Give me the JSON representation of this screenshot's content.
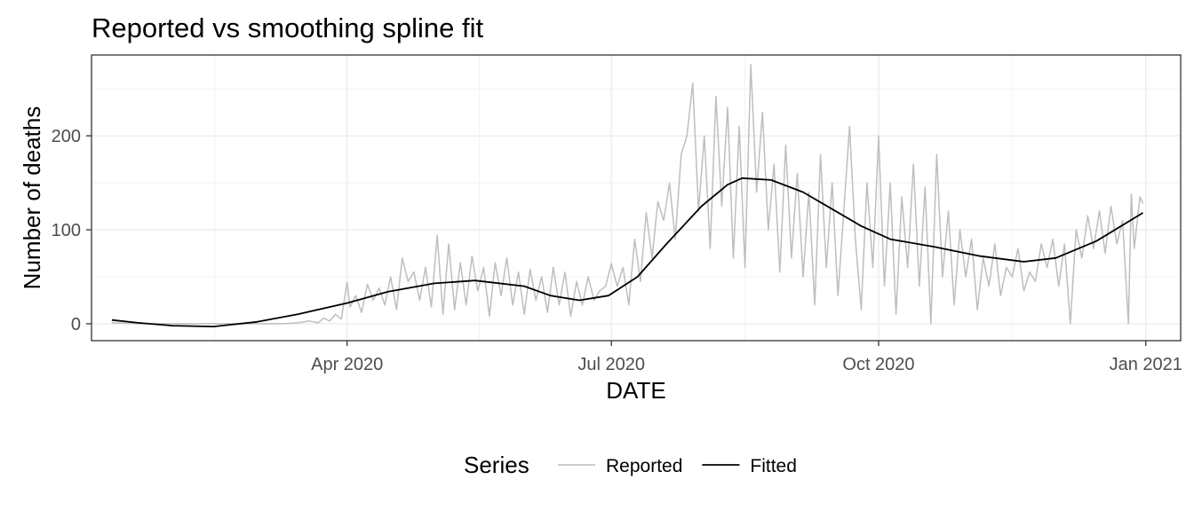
{
  "chart_data": {
    "type": "line",
    "title": "Reported vs smoothing spline fit",
    "xlabel": "DATE",
    "ylabel": "Number of deaths",
    "x_ticks": [
      {
        "date": "2020-04-01",
        "label": "Apr 2020"
      },
      {
        "date": "2020-07-01",
        "label": "Jul 2020"
      },
      {
        "date": "2020-10-01",
        "label": "Oct 2020"
      },
      {
        "date": "2021-01-01",
        "label": "Jan 2021"
      }
    ],
    "y_ticks": [
      0,
      100,
      200
    ],
    "xlim": [
      "2020-01-04",
      "2021-01-13"
    ],
    "ylim": [
      -18,
      286
    ],
    "grid": true,
    "legend": {
      "title": "Series",
      "position": "bottom"
    },
    "series": [
      {
        "name": "Reported",
        "color": "#bebebe",
        "data": [
          [
            "2020-01-11",
            1
          ],
          [
            "2020-01-20",
            0
          ],
          [
            "2020-02-01",
            0
          ],
          [
            "2020-02-15",
            0
          ],
          [
            "2020-03-01",
            0
          ],
          [
            "2020-03-10",
            0
          ],
          [
            "2020-03-15",
            1
          ],
          [
            "2020-03-19",
            3
          ],
          [
            "2020-03-22",
            1
          ],
          [
            "2020-03-24",
            6
          ],
          [
            "2020-03-26",
            3
          ],
          [
            "2020-03-28",
            10
          ],
          [
            "2020-03-30",
            5
          ],
          [
            "2020-04-01",
            44
          ],
          [
            "2020-04-02",
            18
          ],
          [
            "2020-04-04",
            30
          ],
          [
            "2020-04-06",
            12
          ],
          [
            "2020-04-08",
            42
          ],
          [
            "2020-04-10",
            25
          ],
          [
            "2020-04-12",
            38
          ],
          [
            "2020-04-14",
            20
          ],
          [
            "2020-04-16",
            50
          ],
          [
            "2020-04-18",
            15
          ],
          [
            "2020-04-20",
            70
          ],
          [
            "2020-04-22",
            45
          ],
          [
            "2020-04-24",
            55
          ],
          [
            "2020-04-26",
            25
          ],
          [
            "2020-04-28",
            60
          ],
          [
            "2020-04-30",
            18
          ],
          [
            "2020-05-02",
            94
          ],
          [
            "2020-05-04",
            10
          ],
          [
            "2020-05-06",
            85
          ],
          [
            "2020-05-08",
            15
          ],
          [
            "2020-05-10",
            65
          ],
          [
            "2020-05-12",
            20
          ],
          [
            "2020-05-14",
            72
          ],
          [
            "2020-05-16",
            35
          ],
          [
            "2020-05-18",
            60
          ],
          [
            "2020-05-20",
            8
          ],
          [
            "2020-05-22",
            65
          ],
          [
            "2020-05-24",
            30
          ],
          [
            "2020-05-26",
            70
          ],
          [
            "2020-05-28",
            20
          ],
          [
            "2020-05-30",
            55
          ],
          [
            "2020-06-01",
            10
          ],
          [
            "2020-06-03",
            58
          ],
          [
            "2020-06-05",
            25
          ],
          [
            "2020-06-07",
            50
          ],
          [
            "2020-06-09",
            12
          ],
          [
            "2020-06-11",
            60
          ],
          [
            "2020-06-13",
            20
          ],
          [
            "2020-06-15",
            55
          ],
          [
            "2020-06-17",
            8
          ],
          [
            "2020-06-19",
            45
          ],
          [
            "2020-06-21",
            20
          ],
          [
            "2020-06-23",
            50
          ],
          [
            "2020-06-25",
            25
          ],
          [
            "2020-06-27",
            35
          ],
          [
            "2020-06-29",
            40
          ],
          [
            "2020-07-01",
            64
          ],
          [
            "2020-07-03",
            40
          ],
          [
            "2020-07-05",
            60
          ],
          [
            "2020-07-07",
            20
          ],
          [
            "2020-07-09",
            90
          ],
          [
            "2020-07-11",
            45
          ],
          [
            "2020-07-13",
            118
          ],
          [
            "2020-07-15",
            70
          ],
          [
            "2020-07-17",
            130
          ],
          [
            "2020-07-19",
            110
          ],
          [
            "2020-07-21",
            150
          ],
          [
            "2020-07-23",
            90
          ],
          [
            "2020-07-25",
            180
          ],
          [
            "2020-07-27",
            200
          ],
          [
            "2020-07-29",
            256
          ],
          [
            "2020-07-31",
            120
          ],
          [
            "2020-08-02",
            200
          ],
          [
            "2020-08-04",
            80
          ],
          [
            "2020-08-06",
            242
          ],
          [
            "2020-08-08",
            125
          ],
          [
            "2020-08-10",
            230
          ],
          [
            "2020-08-12",
            70
          ],
          [
            "2020-08-14",
            210
          ],
          [
            "2020-08-16",
            60
          ],
          [
            "2020-08-18",
            276
          ],
          [
            "2020-08-20",
            140
          ],
          [
            "2020-08-22",
            225
          ],
          [
            "2020-08-24",
            100
          ],
          [
            "2020-08-26",
            170
          ],
          [
            "2020-08-28",
            55
          ],
          [
            "2020-08-30",
            190
          ],
          [
            "2020-09-01",
            70
          ],
          [
            "2020-09-03",
            160
          ],
          [
            "2020-09-05",
            50
          ],
          [
            "2020-09-07",
            140
          ],
          [
            "2020-09-09",
            20
          ],
          [
            "2020-09-11",
            180
          ],
          [
            "2020-09-13",
            60
          ],
          [
            "2020-09-15",
            150
          ],
          [
            "2020-09-17",
            30
          ],
          [
            "2020-09-19",
            120
          ],
          [
            "2020-09-21",
            210
          ],
          [
            "2020-09-23",
            90
          ],
          [
            "2020-09-25",
            15
          ],
          [
            "2020-09-27",
            150
          ],
          [
            "2020-09-29",
            60
          ],
          [
            "2020-10-01",
            200
          ],
          [
            "2020-10-03",
            40
          ],
          [
            "2020-10-05",
            150
          ],
          [
            "2020-10-07",
            10
          ],
          [
            "2020-10-09",
            135
          ],
          [
            "2020-10-11",
            60
          ],
          [
            "2020-10-13",
            170
          ],
          [
            "2020-10-15",
            40
          ],
          [
            "2020-10-17",
            145
          ],
          [
            "2020-10-19",
            0
          ],
          [
            "2020-10-21",
            180
          ],
          [
            "2020-10-23",
            50
          ],
          [
            "2020-10-25",
            120
          ],
          [
            "2020-10-27",
            20
          ],
          [
            "2020-10-29",
            100
          ],
          [
            "2020-10-31",
            50
          ],
          [
            "2020-11-02",
            90
          ],
          [
            "2020-11-04",
            15
          ],
          [
            "2020-11-06",
            70
          ],
          [
            "2020-11-08",
            40
          ],
          [
            "2020-11-10",
            85
          ],
          [
            "2020-11-12",
            30
          ],
          [
            "2020-11-14",
            60
          ],
          [
            "2020-11-16",
            50
          ],
          [
            "2020-11-18",
            80
          ],
          [
            "2020-11-20",
            35
          ],
          [
            "2020-11-22",
            55
          ],
          [
            "2020-11-24",
            45
          ],
          [
            "2020-11-26",
            85
          ],
          [
            "2020-11-28",
            60
          ],
          [
            "2020-11-30",
            90
          ],
          [
            "2020-12-02",
            40
          ],
          [
            "2020-12-04",
            85
          ],
          [
            "2020-12-06",
            0
          ],
          [
            "2020-12-08",
            100
          ],
          [
            "2020-12-10",
            70
          ],
          [
            "2020-12-12",
            115
          ],
          [
            "2020-12-14",
            80
          ],
          [
            "2020-12-16",
            120
          ],
          [
            "2020-12-18",
            75
          ],
          [
            "2020-12-20",
            125
          ],
          [
            "2020-12-22",
            85
          ],
          [
            "2020-12-24",
            110
          ],
          [
            "2020-12-26",
            0
          ],
          [
            "2020-12-27",
            138
          ],
          [
            "2020-12-28",
            80
          ],
          [
            "2020-12-30",
            135
          ],
          [
            "2020-12-31",
            128
          ]
        ]
      },
      {
        "name": "Fitted",
        "color": "#000000",
        "data": [
          [
            "2020-01-11",
            4
          ],
          [
            "2020-01-20",
            1
          ],
          [
            "2020-02-01",
            -2
          ],
          [
            "2020-02-15",
            -3
          ],
          [
            "2020-03-01",
            2
          ],
          [
            "2020-03-15",
            10
          ],
          [
            "2020-04-01",
            22
          ],
          [
            "2020-04-15",
            34
          ],
          [
            "2020-05-01",
            43
          ],
          [
            "2020-05-15",
            46
          ],
          [
            "2020-06-01",
            40
          ],
          [
            "2020-06-10",
            30
          ],
          [
            "2020-06-20",
            25
          ],
          [
            "2020-06-30",
            30
          ],
          [
            "2020-07-10",
            50
          ],
          [
            "2020-07-20",
            85
          ],
          [
            "2020-08-01",
            125
          ],
          [
            "2020-08-10",
            148
          ],
          [
            "2020-08-15",
            155
          ],
          [
            "2020-08-25",
            153
          ],
          [
            "2020-09-05",
            140
          ],
          [
            "2020-09-15",
            122
          ],
          [
            "2020-09-25",
            104
          ],
          [
            "2020-10-05",
            90
          ],
          [
            "2020-10-20",
            82
          ],
          [
            "2020-11-05",
            72
          ],
          [
            "2020-11-20",
            66
          ],
          [
            "2020-12-01",
            70
          ],
          [
            "2020-12-15",
            88
          ],
          [
            "2020-12-31",
            118
          ]
        ]
      }
    ]
  }
}
